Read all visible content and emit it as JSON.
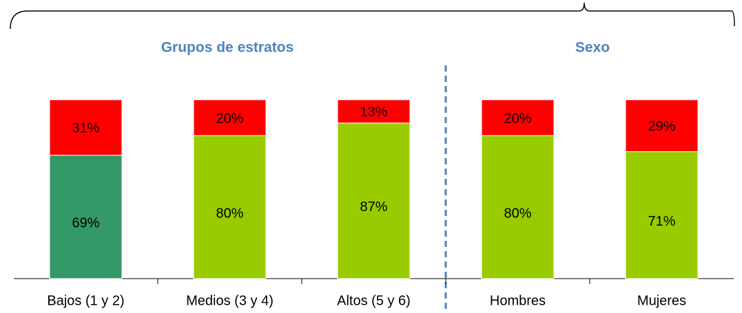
{
  "chart_data": {
    "type": "stacked-bar",
    "groups": [
      "Grupos de estratos",
      "Sexo"
    ],
    "categories": [
      "Bajos (1 y 2)",
      "Medios (3 y 4)",
      "Altos (5 y 6)",
      "Hombres",
      "Mujeres"
    ],
    "series": [
      {
        "color": "#99cc00",
        "colors": [
          "#339966",
          "#99cc00",
          "#99cc00",
          "#99cc00",
          "#99cc00"
        ],
        "values": [
          69,
          80,
          87,
          80,
          71
        ],
        "value_labels": [
          "69%",
          "80%",
          "87%",
          "80%",
          "71%"
        ]
      },
      {
        "color": "#ff0000",
        "values": [
          31,
          20,
          13,
          20,
          29
        ],
        "value_labels": [
          "31%",
          "20%",
          "13%",
          "20%",
          "29%"
        ]
      }
    ],
    "ylim": [
      0,
      100
    ]
  }
}
